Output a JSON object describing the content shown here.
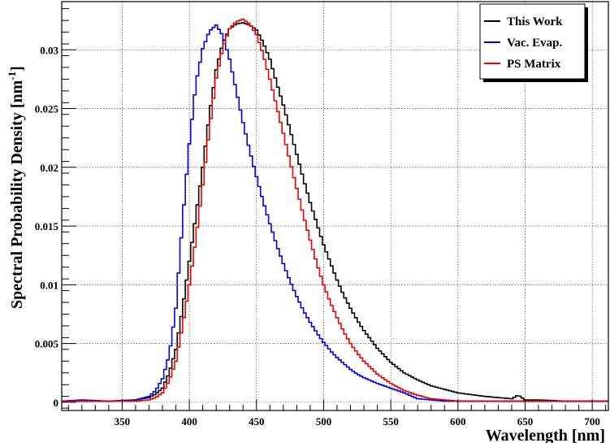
{
  "chart_data": {
    "type": "line",
    "title": "",
    "xlabel": "Wavelength [nm]",
    "ylabel_main": "Spectral Probability Density [nm",
    "ylabel_sup": "-1",
    "ylabel_end": "]",
    "xlim": [
      305,
      712
    ],
    "ylim": [
      -0.0007,
      0.0341
    ],
    "x_ticks": [
      350,
      400,
      450,
      500,
      550,
      600,
      650,
      700
    ],
    "x_tick_labels": [
      "350",
      "400",
      "450",
      "500",
      "550",
      "600",
      "650",
      "700"
    ],
    "y_ticks": [
      0,
      0.005,
      0.01,
      0.015,
      0.02,
      0.025,
      0.03
    ],
    "y_tick_labels": [
      "0",
      "0.005",
      "0.01",
      "0.015",
      "0.02",
      "0.025",
      "0.03"
    ],
    "grid": true,
    "legend_position": "top-right",
    "series": [
      {
        "name": "This Work",
        "color": "#000000",
        "x": [
          305,
          320,
          340,
          360,
          370,
          375,
          380,
          385,
          390,
          395,
          400,
          405,
          410,
          415,
          420,
          425,
          430,
          435,
          440,
          445,
          450,
          455,
          460,
          465,
          470,
          475,
          480,
          485,
          490,
          495,
          500,
          505,
          510,
          515,
          520,
          525,
          530,
          540,
          550,
          560,
          570,
          580,
          590,
          600,
          620,
          640,
          645,
          650,
          660,
          680,
          700,
          712
        ],
        "y": [
          0.0001,
          0.0001,
          0.0001,
          0.0002,
          0.0004,
          0.0007,
          0.0012,
          0.0025,
          0.0045,
          0.008,
          0.012,
          0.016,
          0.02,
          0.0245,
          0.0283,
          0.0306,
          0.0318,
          0.0322,
          0.0323,
          0.0321,
          0.0317,
          0.0306,
          0.0292,
          0.0272,
          0.0253,
          0.0232,
          0.0211,
          0.019,
          0.017,
          0.0152,
          0.0134,
          0.0119,
          0.0104,
          0.0091,
          0.008,
          0.007,
          0.0061,
          0.0046,
          0.0034,
          0.0025,
          0.0019,
          0.0014,
          0.0011,
          0.0008,
          0.0005,
          0.0003,
          0.0006,
          0.0002,
          0.0002,
          0.0001,
          0.0001,
          0.0001
        ]
      },
      {
        "name": "Vac. Evap.",
        "color": "#0000ee",
        "x": [
          305,
          320,
          340,
          360,
          370,
          375,
          380,
          385,
          390,
          395,
          400,
          405,
          410,
          415,
          420,
          425,
          430,
          435,
          440,
          445,
          450,
          455,
          460,
          465,
          470,
          475,
          480,
          485,
          490,
          495,
          500,
          505,
          510,
          515,
          520,
          525,
          530,
          540,
          550,
          560,
          570,
          580,
          590,
          600,
          620,
          640,
          660,
          680,
          700,
          712
        ],
        "y": [
          0.0001,
          0.0002,
          0.0001,
          0.0002,
          0.0005,
          0.001,
          0.002,
          0.004,
          0.008,
          0.0155,
          0.022,
          0.0272,
          0.0301,
          0.0316,
          0.0321,
          0.0312,
          0.0292,
          0.0265,
          0.0238,
          0.0214,
          0.0192,
          0.0171,
          0.0152,
          0.0134,
          0.0118,
          0.0103,
          0.009,
          0.0078,
          0.0068,
          0.0059,
          0.0051,
          0.0044,
          0.0038,
          0.0033,
          0.0028,
          0.0024,
          0.0021,
          0.0016,
          0.0012,
          0.0008,
          0.0003,
          0.0002,
          0.0001,
          0.0001,
          0.0001,
          0.0001,
          0.0001,
          0.0001,
          0.0001,
          0.0001
        ]
      },
      {
        "name": "PS Matrix",
        "color": "#ee0000",
        "x": [
          305,
          320,
          340,
          360,
          370,
          375,
          380,
          385,
          390,
          395,
          400,
          405,
          410,
          415,
          420,
          425,
          430,
          435,
          440,
          445,
          450,
          455,
          460,
          465,
          470,
          475,
          480,
          485,
          490,
          495,
          500,
          505,
          510,
          515,
          520,
          525,
          530,
          540,
          550,
          560,
          570,
          580,
          590,
          600,
          620,
          640,
          660,
          680,
          700,
          712
        ],
        "y": [
          0.0001,
          0.0001,
          0.0001,
          0.0001,
          0.0002,
          0.0004,
          0.0008,
          0.0018,
          0.0035,
          0.0065,
          0.01,
          0.014,
          0.0185,
          0.0233,
          0.0276,
          0.0302,
          0.0318,
          0.0324,
          0.0326,
          0.0322,
          0.0313,
          0.0296,
          0.0275,
          0.0252,
          0.0229,
          0.0205,
          0.0182,
          0.0159,
          0.0138,
          0.0118,
          0.01,
          0.0085,
          0.0072,
          0.006,
          0.005,
          0.0042,
          0.0035,
          0.0024,
          0.0016,
          0.001,
          0.0006,
          0.0003,
          0.0002,
          0.0001,
          0.0001,
          0.0001,
          0.0001,
          0.0001,
          0.0001,
          0.0001
        ]
      }
    ]
  }
}
